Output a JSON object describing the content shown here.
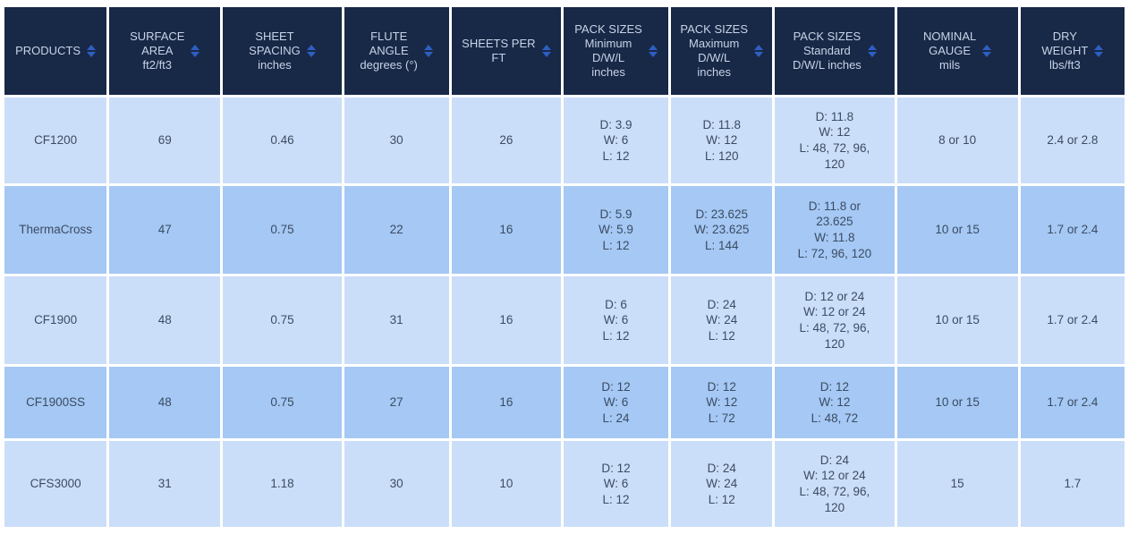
{
  "colors": {
    "header_background": "#182847",
    "header_text": "#c7d3e6",
    "sort_icon_blue": "#2d5fc2",
    "row_light_blue": "#cbdef9",
    "row_medium_blue": "#a5c8f4",
    "cell_text": "#3c4b63",
    "gridline": "#ffffff"
  },
  "table": {
    "columns": [
      {
        "label": "PRODUCTS"
      },
      {
        "label": "SURFACE\nAREA\nft2/ft3"
      },
      {
        "label": "SHEET\nSPACING\ninches"
      },
      {
        "label": "FLUTE\nANGLE\ndegrees (°)"
      },
      {
        "label": "SHEETS PER\nFT"
      },
      {
        "label": "PACK SIZES\nMinimum\nD/W/L\ninches"
      },
      {
        "label": "PACK SIZES\nMaximum\nD/W/L\ninches"
      },
      {
        "label": "PACK SIZES\nStandard\nD/W/L inches"
      },
      {
        "label": "NOMINAL\nGAUGE\nmils"
      },
      {
        "label": "DRY\nWEIGHT\nlbs/ft3"
      }
    ],
    "rows": [
      {
        "cells": [
          "CF1200",
          "69",
          "0.46",
          "30",
          "26",
          "D: 3.9\nW: 6\nL: 12",
          "D: 11.8\nW: 12\nL: 120",
          "D: 11.8\nW: 12\nL: 48, 72, 96,\n120",
          "8 or 10",
          "2.4 or 2.8"
        ]
      },
      {
        "cells": [
          "ThermaCross",
          "47",
          "0.75",
          "22",
          "16",
          "D: 5.9\nW: 5.9\nL: 12",
          "D: 23.625\nW: 23.625\nL: 144",
          "D: 11.8 or\n23.625\nW: 11.8\nL: 72, 96, 120",
          "10 or 15",
          "1.7 or 2.4"
        ]
      },
      {
        "cells": [
          "CF1900",
          "48",
          "0.75",
          "31",
          "16",
          "D: 6\nW: 6\nL: 12",
          "D: 24\nW: 24\nL: 12",
          "D: 12 or 24\nW: 12 or 24\nL: 48, 72, 96,\n120",
          "10 or 15",
          "1.7 or 2.4"
        ]
      },
      {
        "cells": [
          "CF1900SS",
          "48",
          "0.75",
          "27",
          "16",
          "D: 12\nW: 6\nL: 24",
          "D: 12\nW: 12\nL: 72",
          "D: 12\nW: 12\nL: 48, 72",
          "10 or 15",
          "1.7 or 2.4"
        ]
      },
      {
        "cells": [
          "CFS3000",
          "31",
          "1.18",
          "30",
          "10",
          "D: 12\nW: 6\nL: 12",
          "D: 24\nW: 24\nL: 12",
          "D: 24\nW: 12 or 24\nL: 48, 72, 96,\n120",
          "15",
          "1.7"
        ]
      }
    ]
  }
}
